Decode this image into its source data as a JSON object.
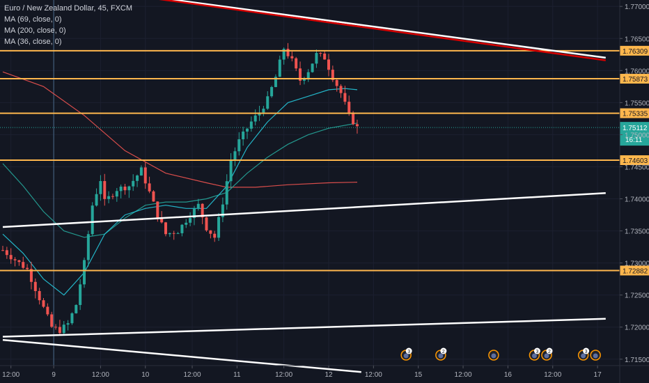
{
  "chart_data": {
    "type": "candlestick",
    "title": "Euro / New Zealand Dollar, 45, FXCM",
    "indicators": [
      {
        "label": "MA (69, close, 0)",
        "color": "#26a69a"
      },
      {
        "label": "MA (200, close, 0)",
        "color": "#ef5350"
      },
      {
        "label": "MA (36, close, 0)",
        "color": "#26c6da"
      }
    ],
    "ylim": [
      1.714,
      1.771
    ],
    "y_ticks": [
      "1.77000",
      "1.76500",
      "1.76000",
      "1.75500",
      "1.75000",
      "1.74500",
      "1.74000",
      "1.73500",
      "1.73000",
      "1.72500",
      "1.72000",
      "1.71500"
    ],
    "x_ticks": [
      "12:00",
      "9",
      "12:00",
      "10",
      "12:00",
      "11",
      "12:00",
      "12",
      "12:00",
      "15",
      "12:00",
      "16",
      "12:00",
      "17",
      "12:00"
    ],
    "horizontal_levels": [
      {
        "label": "1.76309",
        "value": 1.76309
      },
      {
        "label": "1.75873",
        "value": 1.75873
      },
      {
        "label": "1.75335",
        "value": 1.75335
      },
      {
        "label": "1.74603",
        "value": 1.74603
      },
      {
        "label": "1.72882",
        "value": 1.72882
      }
    ],
    "last_price": {
      "label": "1.75112",
      "value": 1.75112,
      "countdown": "16:11"
    },
    "trendlines": [
      {
        "color": "#ffffff",
        "x_bar": [
          0,
          148
        ],
        "y": [
          1.7356,
          1.7409
        ]
      },
      {
        "color": "#ffffff",
        "x_bar": [
          0,
          148
        ],
        "y": [
          1.7185,
          1.7213
        ]
      },
      {
        "color": "#ffffff",
        "x_bar": [
          0,
          88
        ],
        "y": [
          1.718,
          1.713
        ]
      },
      {
        "color": "#ffffff",
        "x_bar": [
          33,
          148
        ],
        "y": [
          1.7718,
          1.762
        ]
      },
      {
        "color": "#d50000",
        "x_bar": [
          33,
          148
        ],
        "y": [
          1.7716,
          1.7616
        ]
      }
    ],
    "event_markers": [
      {
        "day": "15",
        "count": "3"
      },
      {
        "day": "15",
        "count": "2"
      },
      {
        "day": "16",
        "count": ""
      },
      {
        "day": "16",
        "count": "3"
      },
      {
        "day": "16",
        "count": "2"
      },
      {
        "day": "17",
        "count": "3"
      },
      {
        "day": "17",
        "count": ""
      },
      {
        "day": "17",
        "count": ""
      }
    ],
    "candle_path": [
      [
        0,
        1.732
      ],
      [
        6,
        1.729
      ],
      [
        9,
        1.7245
      ],
      [
        12,
        1.72
      ],
      [
        14,
        1.7195
      ],
      [
        16,
        1.7205
      ],
      [
        18,
        1.7235
      ],
      [
        20,
        1.73
      ],
      [
        22,
        1.739
      ],
      [
        24,
        1.743
      ],
      [
        25,
        1.7395
      ],
      [
        28,
        1.7415
      ],
      [
        31,
        1.742
      ],
      [
        34,
        1.7445
      ],
      [
        36,
        1.741
      ],
      [
        38,
        1.7375
      ],
      [
        40,
        1.7345
      ],
      [
        43,
        1.735
      ],
      [
        46,
        1.7375
      ],
      [
        48,
        1.739
      ],
      [
        50,
        1.7355
      ],
      [
        52,
        1.734
      ],
      [
        54,
        1.7395
      ],
      [
        56,
        1.746
      ],
      [
        58,
        1.749
      ],
      [
        61,
        1.752
      ],
      [
        63,
        1.7535
      ],
      [
        65,
        1.7555
      ],
      [
        67,
        1.759
      ],
      [
        69,
        1.7635
      ],
      [
        71,
        1.7615
      ],
      [
        73,
        1.7585
      ],
      [
        75,
        1.76
      ],
      [
        77,
        1.7625
      ],
      [
        79,
        1.762
      ],
      [
        81,
        1.759
      ],
      [
        83,
        1.7565
      ],
      [
        85,
        1.753
      ],
      [
        87,
        1.7511
      ]
    ],
    "ma_lines": [
      {
        "name": "MA (200, close, 0)",
        "color": "#ef5350",
        "points": [
          [
            0,
            1.7598
          ],
          [
            10,
            1.7575
          ],
          [
            20,
            1.753
          ],
          [
            30,
            1.7475
          ],
          [
            40,
            1.744
          ],
          [
            50,
            1.7425
          ],
          [
            55,
            1.7418
          ],
          [
            62,
            1.7418
          ],
          [
            70,
            1.7422
          ],
          [
            80,
            1.7425
          ],
          [
            87,
            1.7426
          ]
        ]
      },
      {
        "name": "MA (69, close, 0)",
        "color": "#26a69a",
        "points": [
          [
            0,
            1.7455
          ],
          [
            5,
            1.742
          ],
          [
            10,
            1.738
          ],
          [
            15,
            1.735
          ],
          [
            20,
            1.734
          ],
          [
            25,
            1.7345
          ],
          [
            30,
            1.737
          ],
          [
            35,
            1.739
          ],
          [
            40,
            1.7395
          ],
          [
            45,
            1.7395
          ],
          [
            50,
            1.74
          ],
          [
            55,
            1.741
          ],
          [
            60,
            1.744
          ],
          [
            65,
            1.7465
          ],
          [
            70,
            1.7485
          ],
          [
            75,
            1.75
          ],
          [
            80,
            1.751
          ],
          [
            87,
            1.7518
          ]
        ]
      },
      {
        "name": "MA (36, close, 0)",
        "color": "#26c6da",
        "points": [
          [
            0,
            1.7345
          ],
          [
            5,
            1.7315
          ],
          [
            10,
            1.7275
          ],
          [
            15,
            1.725
          ],
          [
            20,
            1.7285
          ],
          [
            25,
            1.7345
          ],
          [
            30,
            1.7375
          ],
          [
            35,
            1.7385
          ],
          [
            40,
            1.739
          ],
          [
            45,
            1.7385
          ],
          [
            50,
            1.7385
          ],
          [
            55,
            1.742
          ],
          [
            60,
            1.748
          ],
          [
            65,
            1.752
          ],
          [
            70,
            1.755
          ],
          [
            75,
            1.756
          ],
          [
            80,
            1.757
          ],
          [
            84,
            1.7572
          ],
          [
            87,
            1.757
          ]
        ]
      }
    ],
    "colors": {
      "background": "#131722",
      "up": "#26a69a",
      "down": "#ef5350",
      "level": "#ffb74d",
      "last_price": "#26a69a",
      "axis_text": "#b2b5be",
      "text": "#d1d4dc"
    }
  }
}
